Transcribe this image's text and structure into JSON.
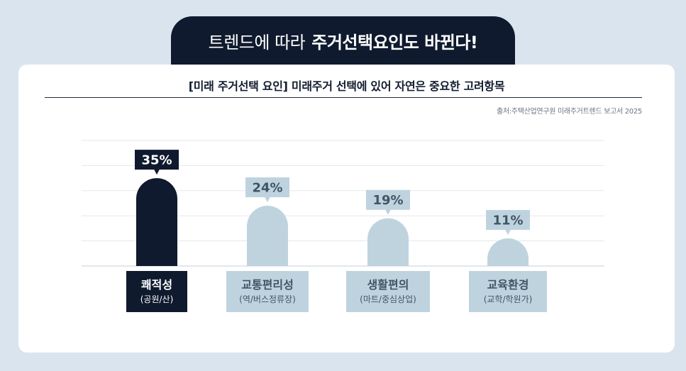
{
  "banner": {
    "title_light": "트렌드에 따라",
    "title_bold": "주거선택요인도 바뀐다!"
  },
  "colors": {
    "dark": "#0f1a2e",
    "light": "#bfd3df",
    "light_text": "#3f5666",
    "background": "#d9e4ee"
  },
  "chart_data": {
    "type": "bar",
    "title": "[미래 주거선택 요인] 미래주거 선택에 있어 자연은 중요한 고려항목",
    "source": "출처:주택산업연구원 미래주거트렌드 보고서 2025",
    "categories": [
      "쾌적성",
      "교통편리성",
      "생활편의",
      "교육환경"
    ],
    "subcategories": [
      "(공원/산)",
      "(역/버스정류장)",
      "(마트/중심상업)",
      "(교학/학원가)"
    ],
    "values": [
      35,
      24,
      19,
      11
    ],
    "value_labels": [
      "35%",
      "24%",
      "19%",
      "11%"
    ],
    "highlight_index": 0,
    "ylim": [
      0,
      50
    ],
    "grid": true
  }
}
